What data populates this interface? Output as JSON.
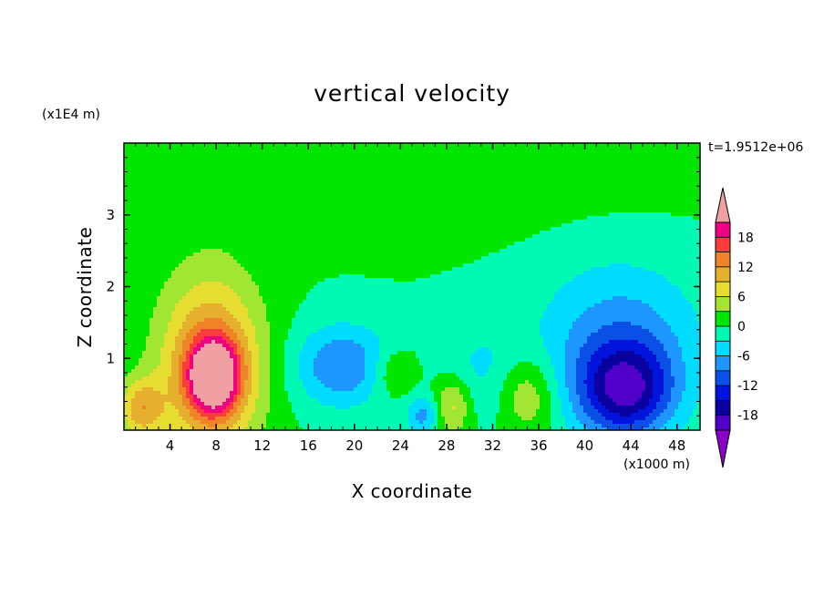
{
  "chart_data": {
    "type": "heatmap",
    "title": "vertical velocity",
    "xlabel": "X coordinate",
    "ylabel": "Z coordinate",
    "x_units": "(x1000 m)",
    "y_units": "(x1E4 m)",
    "time_label": "t=1.9512e+06",
    "x_ticks": [
      "4",
      "8",
      "12",
      "16",
      "20",
      "24",
      "28",
      "32",
      "36",
      "40",
      "44",
      "48"
    ],
    "y_ticks": [
      "1",
      "2",
      "3"
    ],
    "xlim": [
      0,
      50
    ],
    "ylim": [
      0,
      4
    ],
    "colorbar": {
      "levels": [
        -21,
        -18,
        -15,
        -12,
        -9,
        -6,
        -3,
        0,
        3,
        6,
        9,
        12,
        15,
        18,
        21
      ],
      "tick_labels": [
        "18",
        "12",
        "6",
        "0",
        "-6",
        "-12",
        "-18"
      ],
      "tick_values": [
        18,
        12,
        6,
        0,
        -6,
        -12,
        -18
      ],
      "colors": [
        "#8c00c8",
        "#5000c8",
        "#0a00a0",
        "#0014dc",
        "#0a50e6",
        "#1e96ff",
        "#00dcff",
        "#00fab4",
        "#00e600",
        "#a0e632",
        "#e6dc32",
        "#e6af2d",
        "#f08228",
        "#fa3c3c",
        "#f00082",
        "#f0a0a0"
      ]
    },
    "features": [
      {
        "x": 7.8,
        "z": 0.75,
        "value": 21,
        "sx": 1.5,
        "sz": 0.35
      },
      {
        "x": 7.5,
        "z": 0.9,
        "value": 14,
        "sx": 3.2,
        "sz": 0.9
      },
      {
        "x": 1.5,
        "z": 0.3,
        "value": 10,
        "sx": 1.4,
        "sz": 0.3
      },
      {
        "x": 28.5,
        "z": 0.35,
        "value": 8,
        "sx": 1.2,
        "sz": 0.3
      },
      {
        "x": 35.0,
        "z": 0.5,
        "value": 7,
        "sx": 1.8,
        "sz": 0.4
      },
      {
        "x": 23.5,
        "z": 0.8,
        "value": 5,
        "sx": 1.5,
        "sz": 0.25
      },
      {
        "x": 19.0,
        "z": 0.9,
        "value": -9,
        "sx": 3.0,
        "sz": 0.4
      },
      {
        "x": 43.5,
        "z": 0.55,
        "value": -15,
        "sx": 2.8,
        "sz": 0.45
      },
      {
        "x": 43.0,
        "z": 1.2,
        "value": -8,
        "sx": 5.0,
        "sz": 0.8
      },
      {
        "x": 26.0,
        "z": 0.2,
        "value": -7,
        "sx": 1.0,
        "sz": 0.2
      },
      {
        "x": 31.0,
        "z": 0.8,
        "value": -3.5,
        "sx": 3.0,
        "sz": 0.5
      },
      {
        "x": 20.0,
        "z": 3.3,
        "value": 1.5,
        "sx": 18.0,
        "sz": 0.45
      },
      {
        "x": 45.0,
        "z": 3.85,
        "value": 2,
        "sx": 5.0,
        "sz": 0.3
      }
    ]
  }
}
